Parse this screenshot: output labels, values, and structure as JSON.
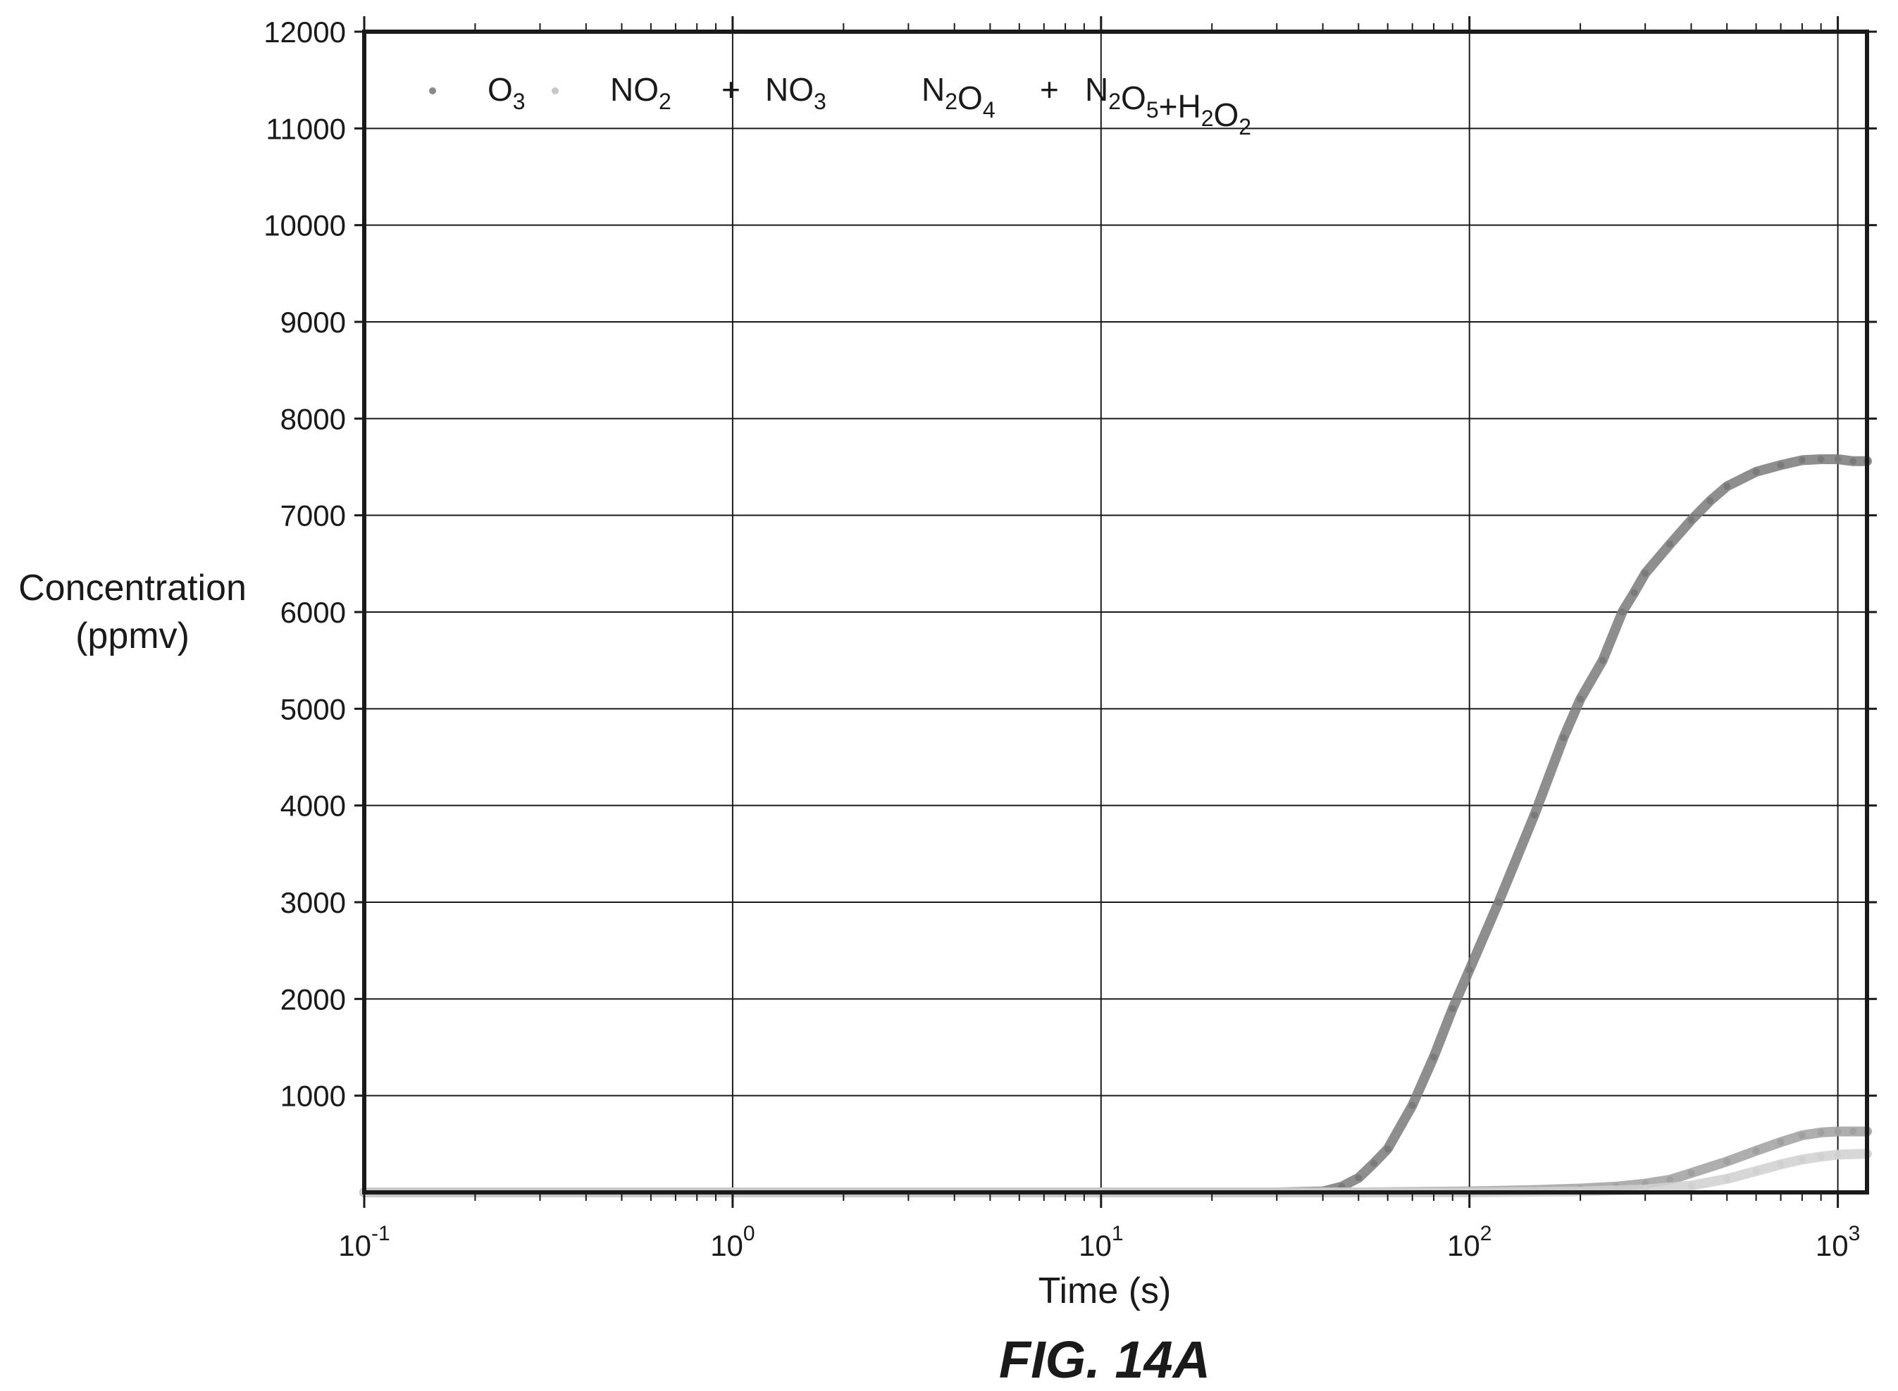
{
  "figure_caption": "FIG. 14A",
  "chart_data": {
    "type": "line",
    "title": "",
    "xlabel": "Time (s)",
    "ylabel": [
      "Concentration",
      "(ppmv)"
    ],
    "x_scale": "log",
    "xlim": [
      0.1,
      1200
    ],
    "ylim": [
      0,
      12000
    ],
    "x_ticks": [
      {
        "value": 0.1,
        "base": "10",
        "exp": "-1"
      },
      {
        "value": 1,
        "base": "10",
        "exp": "0"
      },
      {
        "value": 10,
        "base": "10",
        "exp": "1"
      },
      {
        "value": 100,
        "base": "10",
        "exp": "2"
      },
      {
        "value": 1000,
        "base": "10",
        "exp": "3"
      }
    ],
    "y_ticks": [
      1000,
      2000,
      3000,
      4000,
      5000,
      6000,
      7000,
      8000,
      9000,
      10000,
      11000,
      12000
    ],
    "grid": true,
    "legend_position": "top-left",
    "legend": [
      {
        "name": "O3",
        "base": "O",
        "sub": "3",
        "marker": "dot",
        "color": "#8a8a8a"
      },
      {
        "name": "NO2",
        "base": "NO",
        "sub": "2",
        "marker": "dot",
        "color": "#c8c8c8"
      },
      {
        "name": "+",
        "marker": "none",
        "color": "#1a1a1a"
      },
      {
        "name": "NO3",
        "base": "NO",
        "sub": "3",
        "marker": "none",
        "color": "#1a1a1a"
      },
      {
        "name": "N2O4",
        "parts": [
          "N",
          "2",
          "O",
          "4"
        ],
        "marker": "none",
        "color": "#1a1a1a"
      },
      {
        "name": "+",
        "marker": "none",
        "color": "#1a1a1a"
      },
      {
        "name": "N2O5+H2O2",
        "parts": [
          "N",
          "2",
          "O",
          "5",
          "+H",
          "2",
          "O",
          "2"
        ],
        "marker": "none",
        "color": "#1a1a1a"
      }
    ],
    "series": [
      {
        "name": "O3",
        "color": "#7a7a7a",
        "x": [
          0.1,
          1,
          10,
          30,
          40,
          45,
          50,
          55,
          60,
          70,
          80,
          90,
          100,
          120,
          150,
          180,
          200,
          230,
          260,
          280,
          300,
          350,
          400,
          450,
          500,
          600,
          700,
          800,
          900,
          1000,
          1100,
          1200
        ],
        "y": [
          0,
          0,
          0,
          0,
          10,
          60,
          150,
          300,
          450,
          900,
          1400,
          1900,
          2300,
          3000,
          3900,
          4700,
          5100,
          5500,
          6000,
          6200,
          6400,
          6700,
          6950,
          7150,
          7300,
          7450,
          7520,
          7570,
          7580,
          7580,
          7560,
          7560
        ]
      },
      {
        "name": "NO2",
        "color": "#a0a0a0",
        "x": [
          0.1,
          10,
          50,
          100,
          150,
          200,
          250,
          300,
          350,
          400,
          500,
          600,
          700,
          800,
          900,
          1000,
          1100,
          1200
        ],
        "y": [
          0,
          0,
          0,
          10,
          25,
          40,
          60,
          90,
          130,
          200,
          320,
          430,
          520,
          590,
          620,
          630,
          630,
          630
        ]
      },
      {
        "name": "N2O5+H2O2",
        "color": "#d0d0d0",
        "x": [
          0.1,
          10,
          100,
          200,
          300,
          400,
          500,
          600,
          700,
          800,
          900,
          1000,
          1200
        ],
        "y": [
          0,
          0,
          0,
          10,
          30,
          70,
          140,
          220,
          290,
          340,
          370,
          390,
          400
        ]
      }
    ]
  }
}
